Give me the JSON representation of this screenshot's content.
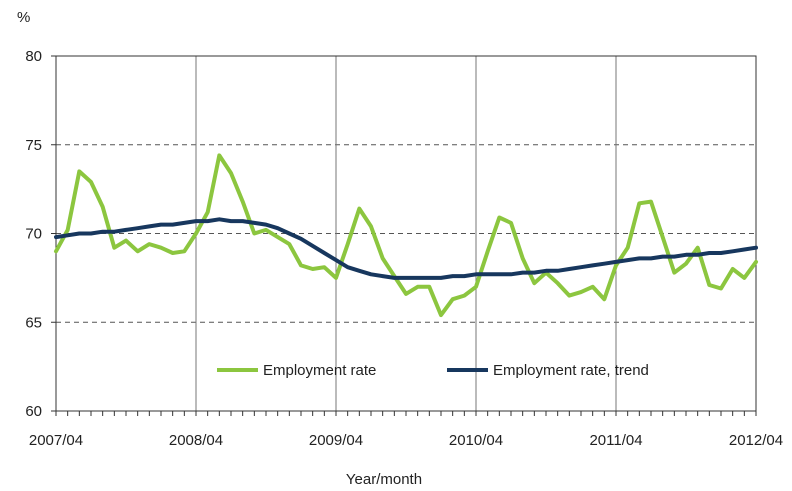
{
  "chart_data": {
    "type": "line",
    "ylabel": "%",
    "xlabel": "Year/month",
    "ylim": [
      60,
      80
    ],
    "yticks": [
      "60",
      "65",
      "70",
      "75",
      "80"
    ],
    "xticks": [
      "2007/04",
      "2008/04",
      "2009/04",
      "2010/04",
      "2011/04",
      "2012/04"
    ],
    "x_start": "2007/04",
    "grid": "dashed horizontal and solid vertical gridlines",
    "legend_position": "bottom-center",
    "series": [
      {
        "name": "Employment rate",
        "color": "#8cc63f",
        "values": [
          69.0,
          70.2,
          73.5,
          72.9,
          71.5,
          69.2,
          69.6,
          69.0,
          69.4,
          69.2,
          68.9,
          69.0,
          70.0,
          71.2,
          74.4,
          73.4,
          71.8,
          70.0,
          70.2,
          69.8,
          69.4,
          68.2,
          68.0,
          68.1,
          67.5,
          69.4,
          71.4,
          70.4,
          68.6,
          67.6,
          66.6,
          67.0,
          67.0,
          65.4,
          66.3,
          66.5,
          67.0,
          69.0,
          70.9,
          70.6,
          68.6,
          67.2,
          67.8,
          67.2,
          66.5,
          66.7,
          67.0,
          66.3,
          68.2,
          69.2,
          71.7,
          71.8,
          69.8,
          67.8,
          68.3,
          69.2,
          67.1,
          66.9,
          68.0,
          67.5,
          68.4
        ]
      },
      {
        "name": "Employment rate, trend",
        "color": "#17375e",
        "values": [
          69.8,
          69.9,
          70.0,
          70.0,
          70.1,
          70.1,
          70.2,
          70.3,
          70.4,
          70.5,
          70.5,
          70.6,
          70.7,
          70.7,
          70.8,
          70.7,
          70.7,
          70.6,
          70.5,
          70.3,
          70.0,
          69.7,
          69.3,
          68.9,
          68.5,
          68.1,
          67.9,
          67.7,
          67.6,
          67.5,
          67.5,
          67.5,
          67.5,
          67.5,
          67.6,
          67.6,
          67.7,
          67.7,
          67.7,
          67.7,
          67.8,
          67.8,
          67.9,
          67.9,
          68.0,
          68.1,
          68.2,
          68.3,
          68.4,
          68.5,
          68.6,
          68.6,
          68.7,
          68.7,
          68.8,
          68.8,
          68.9,
          68.9,
          69.0,
          69.1,
          69.2
        ]
      }
    ]
  }
}
